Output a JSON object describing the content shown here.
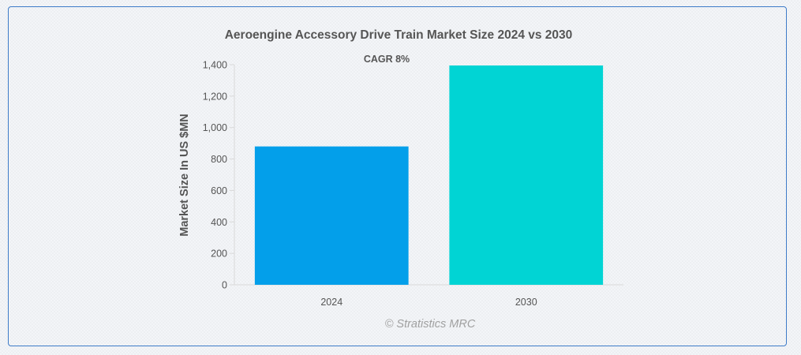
{
  "chart_data": {
    "type": "bar",
    "title": "Aeroengine Accessory Drive Train Market Size 2024 vs 2030",
    "annotation": "CAGR 8%",
    "xlabel": "",
    "ylabel": "Market Size In US $MN",
    "categories": [
      "2024",
      "2030"
    ],
    "values": [
      880,
      1395
    ],
    "colors": [
      "#039fea",
      "#01d4d4"
    ],
    "ylim": [
      0,
      1400
    ],
    "yticks": [
      0,
      200,
      400,
      600,
      800,
      1000,
      1200,
      1400
    ],
    "ytick_labels": [
      "0",
      "200",
      "400",
      "600",
      "800",
      "1,000",
      "1,200",
      "1,400"
    ],
    "grid": false,
    "legend": "none"
  },
  "credit": "© Stratistics MRC"
}
